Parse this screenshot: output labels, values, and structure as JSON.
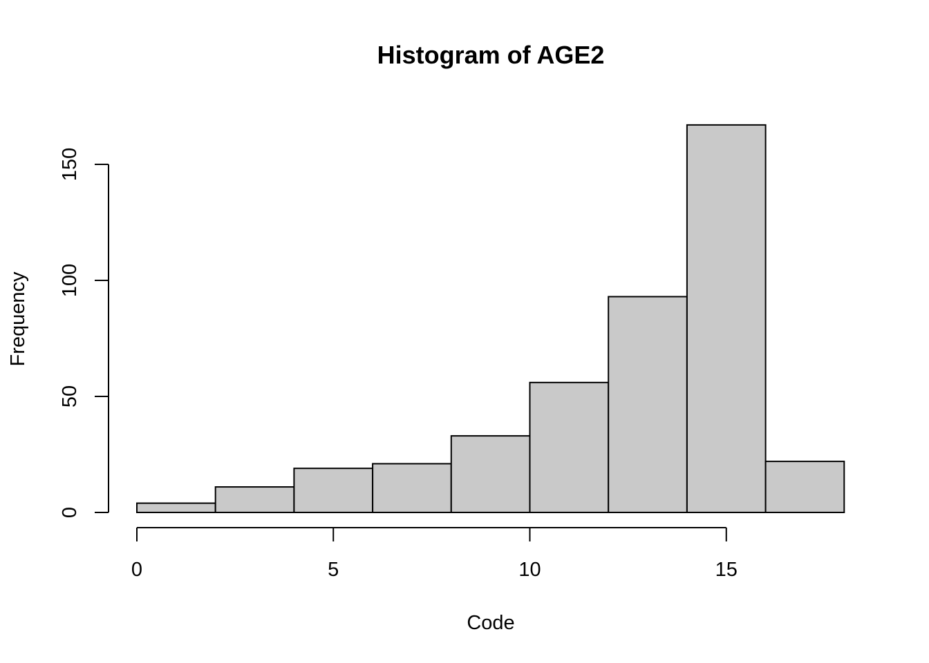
{
  "chart_data": {
    "type": "bar",
    "subtype": "histogram",
    "title": "Histogram of AGE2",
    "xlabel": "Code",
    "ylabel": "Frequency",
    "bins": [
      {
        "start": 0,
        "end": 2,
        "count": 4
      },
      {
        "start": 2,
        "end": 4,
        "count": 11
      },
      {
        "start": 4,
        "end": 6,
        "count": 19
      },
      {
        "start": 6,
        "end": 8,
        "count": 21
      },
      {
        "start": 8,
        "end": 10,
        "count": 33
      },
      {
        "start": 10,
        "end": 12,
        "count": 56
      },
      {
        "start": 12,
        "end": 14,
        "count": 93
      },
      {
        "start": 14,
        "end": 16,
        "count": 167
      },
      {
        "start": 16,
        "end": 18,
        "count": 22
      }
    ],
    "xlim": [
      0,
      18
    ],
    "ylim": [
      0,
      167
    ],
    "x_ticks": [
      0,
      5,
      10,
      15
    ],
    "x_tick_labels": [
      "0",
      "5",
      "10",
      "15"
    ],
    "y_ticks": [
      0,
      50,
      100,
      150
    ],
    "y_tick_labels": [
      "0",
      "50",
      "100",
      "150"
    ],
    "grid": false,
    "legend": "none",
    "colors": {
      "bar_fill": "#c9c9c9",
      "bar_stroke": "#000000",
      "axis": "#000000",
      "background": "#ffffff"
    }
  }
}
